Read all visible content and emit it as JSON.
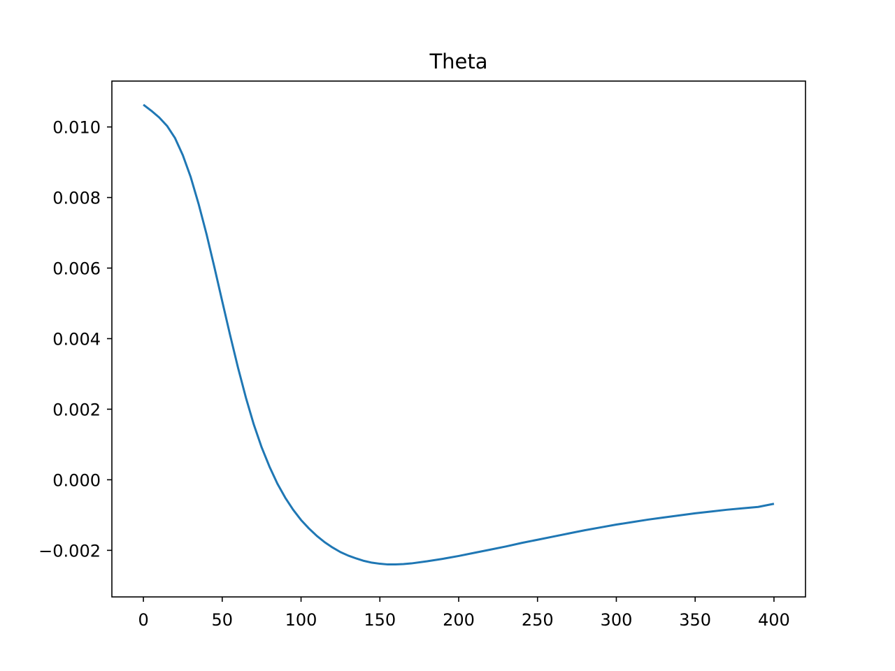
{
  "chart_data": {
    "type": "line",
    "title": "Theta",
    "xlabel": "",
    "ylabel": "",
    "xlim": [
      -20,
      420
    ],
    "ylim": [
      -0.00332,
      0.0113
    ],
    "x_ticks": [
      0,
      50,
      100,
      150,
      200,
      250,
      300,
      350,
      400
    ],
    "x_tick_labels": [
      "0",
      "50",
      "100",
      "150",
      "200",
      "250",
      "300",
      "350",
      "400"
    ],
    "y_ticks": [
      -0.002,
      0.0,
      0.002,
      0.004,
      0.006,
      0.008,
      0.01
    ],
    "y_tick_labels": [
      "−0.002",
      "0.000",
      "0.002",
      "0.004",
      "0.006",
      "0.008",
      "0.010"
    ],
    "grid": false,
    "series": [
      {
        "color": "#1f77b4",
        "x": [
          0,
          5,
          10,
          15,
          20,
          25,
          30,
          35,
          40,
          45,
          50,
          55,
          60,
          65,
          70,
          75,
          80,
          85,
          90,
          95,
          100,
          105,
          110,
          115,
          120,
          125,
          130,
          135,
          140,
          145,
          150,
          155,
          160,
          165,
          170,
          180,
          190,
          200,
          210,
          220,
          230,
          240,
          250,
          260,
          270,
          280,
          290,
          300,
          310,
          320,
          330,
          340,
          350,
          360,
          370,
          380,
          390,
          400
        ],
        "values": [
          0.01063,
          0.01046,
          0.01027,
          0.01003,
          0.00969,
          0.0092,
          0.00858,
          0.00782,
          0.00697,
          0.00603,
          0.00506,
          0.0041,
          0.00318,
          0.00233,
          0.00157,
          0.00092,
          0.00037,
          -0.00011,
          -0.00051,
          -0.00085,
          -0.00114,
          -0.00138,
          -0.00159,
          -0.00177,
          -0.00192,
          -0.00205,
          -0.00215,
          -0.00223,
          -0.0023,
          -0.00235,
          -0.00238,
          -0.0024,
          -0.0024,
          -0.00239,
          -0.00237,
          -0.00231,
          -0.00224,
          -0.00216,
          -0.00207,
          -0.00198,
          -0.00189,
          -0.00179,
          -0.0017,
          -0.00161,
          -0.00152,
          -0.00143,
          -0.00135,
          -0.00127,
          -0.0012,
          -0.00113,
          -0.00107,
          -0.00101,
          -0.00095,
          -0.0009,
          -0.00085,
          -0.00081,
          -0.00077,
          -0.00068
        ]
      }
    ]
  }
}
